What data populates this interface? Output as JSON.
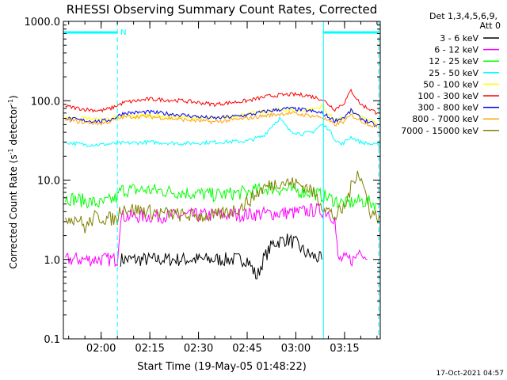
{
  "chart_data": {
    "type": "line",
    "title": "RHESSI Observing Summary Count Rates, Corrected",
    "xlabel": "Start Time (19-May-05 01:48:22)",
    "ylabel_parts": [
      "Corrected Count Rate (s",
      "-1",
      " detector",
      "-1",
      ")"
    ],
    "y_scale": "log",
    "ylim": [
      0.1,
      1000.0
    ],
    "y_tick_labels": [
      "0.1",
      "1.0",
      "10.0",
      "100.0",
      "1000.0"
    ],
    "xlim": [
      "01:48:22",
      "03:26:00"
    ],
    "x_tick_labels": [
      "02:00",
      "02:15",
      "02:30",
      "02:45",
      "03:00",
      "03:15"
    ],
    "legend_header": [
      "Det 1,3,4,5,6,9,",
      "Att 0"
    ],
    "legend_placement": "top-right, outside plot",
    "timestamp": "17-Oct-2021 04:57",
    "night_marker_label": "N",
    "attenuator_state_bars": [
      {
        "start": "01:48:22",
        "end": "02:05:00"
      },
      {
        "start": "03:08:30",
        "end": "03:25:30"
      }
    ],
    "vertical_lines": [
      {
        "time": "01:48:22",
        "style": "solid"
      },
      {
        "time": "02:05:00",
        "style": "dashed"
      },
      {
        "time": "03:08:30",
        "style": "solid"
      },
      {
        "time": "03:25:30",
        "style": "dashed"
      }
    ],
    "series": [
      {
        "name": "3 - 6 keV",
        "color": "#000000",
        "points": [
          [
            "02:06",
            1.0
          ],
          [
            "02:15",
            1.0
          ],
          [
            "02:25",
            1.0
          ],
          [
            "02:35",
            1.0
          ],
          [
            "02:41",
            1.0
          ],
          [
            "02:45",
            1.0
          ],
          [
            "02:48",
            0.6
          ],
          [
            "02:50",
            1.0
          ],
          [
            "02:53",
            1.6
          ],
          [
            "02:57",
            1.8
          ],
          [
            "03:00",
            1.6
          ],
          [
            "03:03",
            1.2
          ],
          [
            "03:08",
            1.0
          ]
        ]
      },
      {
        "name": "6 - 12 keV",
        "color": "#ff00ff",
        "points": [
          [
            "01:49",
            1.0
          ],
          [
            "02:00",
            1.0
          ],
          [
            "02:05",
            1.0
          ],
          [
            "02:06",
            3.5
          ],
          [
            "02:15",
            3.5
          ],
          [
            "02:30",
            3.6
          ],
          [
            "02:45",
            3.7
          ],
          [
            "03:00",
            3.9
          ],
          [
            "03:06",
            4.2
          ],
          [
            "03:10",
            4.0
          ],
          [
            "03:12",
            3.2
          ],
          [
            "03:13",
            1.0
          ],
          [
            "03:18",
            1.0
          ],
          [
            "03:20",
            1.4
          ],
          [
            "03:22",
            1.0
          ]
        ]
      },
      {
        "name": "12 - 25 keV",
        "color": "#00ff00",
        "points": [
          [
            "01:49",
            6.0
          ],
          [
            "01:55",
            5.5
          ],
          [
            "02:00",
            5.0
          ],
          [
            "02:05",
            6.0
          ],
          [
            "02:06",
            7.5
          ],
          [
            "02:15",
            7.5
          ],
          [
            "02:25",
            7.0
          ],
          [
            "02:35",
            6.5
          ],
          [
            "02:45",
            7.0
          ],
          [
            "02:52",
            8.0
          ],
          [
            "02:58",
            7.5
          ],
          [
            "03:05",
            7.0
          ],
          [
            "03:10",
            6.0
          ],
          [
            "03:15",
            5.0
          ],
          [
            "03:20",
            5.5
          ],
          [
            "03:25",
            5.0
          ]
        ]
      },
      {
        "name": "25 - 50 keV",
        "color": "#00ffff",
        "points": [
          [
            "01:49",
            30
          ],
          [
            "01:55",
            28
          ],
          [
            "02:00",
            28
          ],
          [
            "02:05",
            29
          ],
          [
            "02:15",
            30
          ],
          [
            "02:25",
            29
          ],
          [
            "02:35",
            30
          ],
          [
            "02:45",
            31
          ],
          [
            "02:50",
            36
          ],
          [
            "02:53",
            50
          ],
          [
            "02:55",
            60
          ],
          [
            "02:58",
            42
          ],
          [
            "03:02",
            38
          ],
          [
            "03:05",
            40
          ],
          [
            "03:08",
            50
          ],
          [
            "03:10",
            45
          ],
          [
            "03:12",
            33
          ],
          [
            "03:14",
            28
          ],
          [
            "03:17",
            35
          ],
          [
            "03:20",
            30
          ],
          [
            "03:24",
            28
          ],
          [
            "03:26",
            27
          ]
        ]
      },
      {
        "name": "50 - 100 keV",
        "color": "#ffff00",
        "points": [
          [
            "01:49",
            62
          ],
          [
            "02:00",
            58
          ],
          [
            "02:05",
            62
          ],
          [
            "02:15",
            66
          ],
          [
            "02:25",
            62
          ],
          [
            "02:35",
            60
          ],
          [
            "02:45",
            68
          ],
          [
            "02:55",
            78
          ],
          [
            "03:00",
            75
          ],
          [
            "03:05",
            78
          ],
          [
            "03:08",
            85
          ],
          [
            "03:10",
            68
          ],
          [
            "03:12",
            58
          ],
          [
            "03:15",
            60
          ],
          [
            "03:17",
            75
          ],
          [
            "03:20",
            62
          ],
          [
            "03:25",
            52
          ]
        ]
      },
      {
        "name": "100 - 300 keV",
        "color": "#ff0000",
        "points": [
          [
            "01:49",
            85
          ],
          [
            "01:55",
            78
          ],
          [
            "02:00",
            75
          ],
          [
            "02:03",
            80
          ],
          [
            "02:07",
            95
          ],
          [
            "02:15",
            105
          ],
          [
            "02:25",
            100
          ],
          [
            "02:35",
            90
          ],
          [
            "02:45",
            100
          ],
          [
            "02:52",
            115
          ],
          [
            "02:58",
            120
          ],
          [
            "03:03",
            118
          ],
          [
            "03:08",
            105
          ],
          [
            "03:12",
            78
          ],
          [
            "03:15",
            95
          ],
          [
            "03:17",
            135
          ],
          [
            "03:20",
            90
          ],
          [
            "03:25",
            70
          ]
        ]
      },
      {
        "name": "300 - 800 keV",
        "color": "#0000ff",
        "points": [
          [
            "01:49",
            60
          ],
          [
            "01:55",
            56
          ],
          [
            "02:00",
            55
          ],
          [
            "02:03",
            58
          ],
          [
            "02:07",
            70
          ],
          [
            "02:15",
            72
          ],
          [
            "02:25",
            66
          ],
          [
            "02:35",
            60
          ],
          [
            "02:45",
            66
          ],
          [
            "02:52",
            75
          ],
          [
            "02:58",
            80
          ],
          [
            "03:03",
            76
          ],
          [
            "03:08",
            70
          ],
          [
            "03:12",
            56
          ],
          [
            "03:15",
            62
          ],
          [
            "03:17",
            75
          ],
          [
            "03:20",
            60
          ],
          [
            "03:25",
            48
          ]
        ]
      },
      {
        "name": "800 - 7000 keV",
        "color": "#ffa500",
        "points": [
          [
            "01:49",
            58
          ],
          [
            "01:55",
            53
          ],
          [
            "02:00",
            52
          ],
          [
            "02:03",
            55
          ],
          [
            "02:07",
            63
          ],
          [
            "02:15",
            63
          ],
          [
            "02:25",
            58
          ],
          [
            "02:35",
            54
          ],
          [
            "02:45",
            60
          ],
          [
            "02:52",
            66
          ],
          [
            "02:58",
            70
          ],
          [
            "03:03",
            66
          ],
          [
            "03:08",
            62
          ],
          [
            "03:12",
            50
          ],
          [
            "03:15",
            55
          ],
          [
            "03:17",
            66
          ],
          [
            "03:20",
            56
          ],
          [
            "03:25",
            46
          ]
        ]
      },
      {
        "name": "7000 - 15000 keV",
        "color": "#808000",
        "points": [
          [
            "01:49",
            3.4
          ],
          [
            "01:53",
            3.3
          ],
          [
            "01:55",
            2.5
          ],
          [
            "01:58",
            3.4
          ],
          [
            "02:05",
            3.2
          ],
          [
            "02:06",
            4.5
          ],
          [
            "02:15",
            4.0
          ],
          [
            "02:25",
            3.6
          ],
          [
            "02:35",
            3.5
          ],
          [
            "02:43",
            4.5
          ],
          [
            "02:50",
            8.0
          ],
          [
            "02:55",
            9.5
          ],
          [
            "03:00",
            9.0
          ],
          [
            "03:04",
            8.0
          ],
          [
            "03:08",
            5.0
          ],
          [
            "03:12",
            3.4
          ],
          [
            "03:15",
            4.5
          ],
          [
            "03:17",
            8.0
          ],
          [
            "03:19",
            13.5
          ],
          [
            "03:21",
            8.0
          ],
          [
            "03:23",
            4.0
          ],
          [
            "03:26",
            3.3
          ]
        ]
      }
    ]
  }
}
